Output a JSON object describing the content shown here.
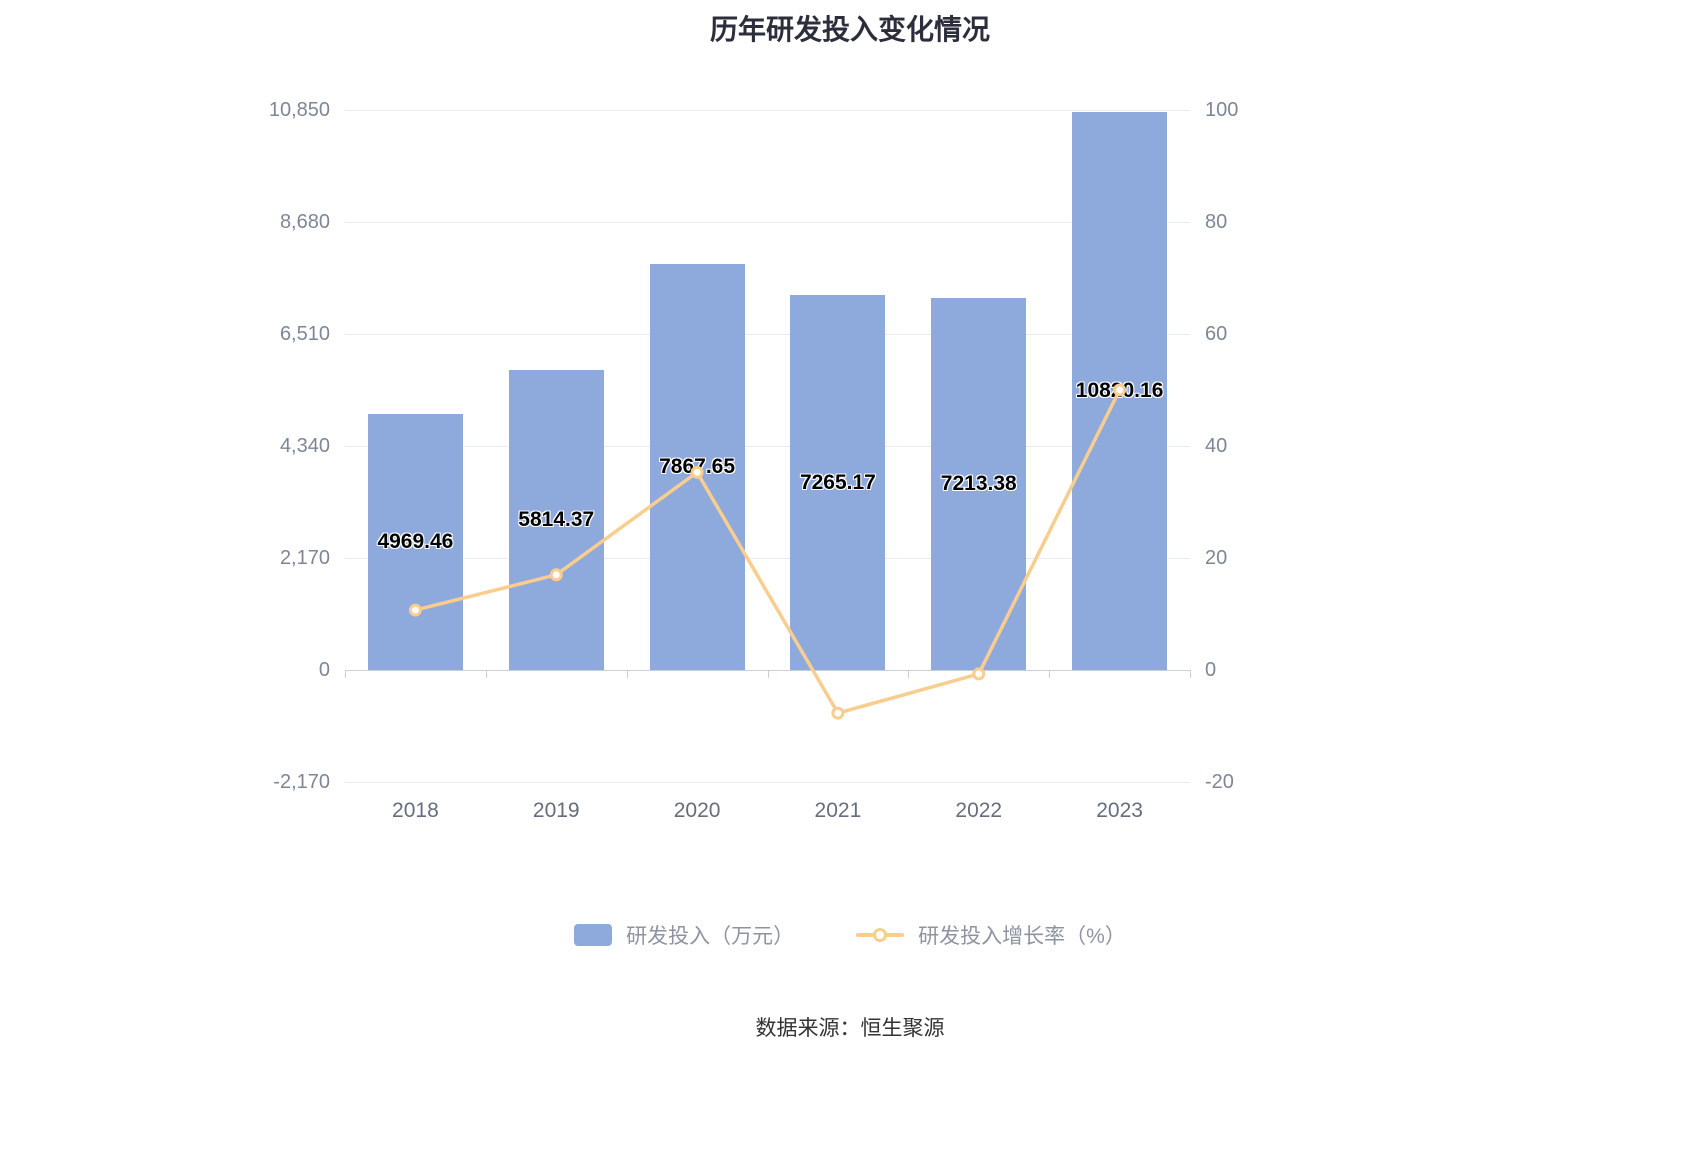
{
  "title": "历年研发投入变化情况",
  "source": "数据来源：恒生聚源",
  "legend": [
    {
      "label": "研发投入（万元）"
    },
    {
      "label": "研发投入增长率（%）"
    }
  ],
  "colors": {
    "bar": "#8EA9DB",
    "line": "#F8CD8E",
    "title_text": "#2C2F3B",
    "axis_text": "#7E8696",
    "grid": "#E9ECF2",
    "bar_label_text": "#000000",
    "legend_text": "#8D93A1",
    "source_text": "#333333"
  },
  "chart_data": {
    "type": "bar+line",
    "title": "历年研发投入变化情况",
    "categories": [
      "2018",
      "2019",
      "2020",
      "2021",
      "2022",
      "2023"
    ],
    "series": [
      {
        "name": "研发投入（万元）",
        "type": "bar",
        "axis": "left",
        "values": [
          4969.46,
          5814.37,
          7867.65,
          7265.17,
          7213.38,
          10820.16
        ]
      },
      {
        "name": "研发投入增长率（%）",
        "type": "line",
        "axis": "right",
        "values": [
          10.7,
          17.0,
          35.3,
          -7.7,
          -0.7,
          50.0
        ]
      }
    ],
    "bar_labels": [
      "4969.46",
      "5814.37",
      "7867.65",
      "7265.17",
      "7213.38",
      "10820.16"
    ],
    "left_axis": {
      "min": -2170,
      "max": 10850,
      "ticks": [
        10850,
        8680,
        6510,
        4340,
        2170,
        0,
        -2170
      ],
      "tick_labels": [
        "10,850",
        "8,680",
        "6,510",
        "4,340",
        "2,170",
        "0",
        "-2,170"
      ]
    },
    "right_axis": {
      "min": -20,
      "max": 100,
      "ticks": [
        100,
        80,
        60,
        40,
        20,
        0,
        -20
      ],
      "tick_labels": [
        "100",
        "80",
        "60",
        "40",
        "20",
        "0",
        "-20"
      ]
    },
    "grid": "horizontal gridlines only",
    "legend_position": "bottom"
  }
}
